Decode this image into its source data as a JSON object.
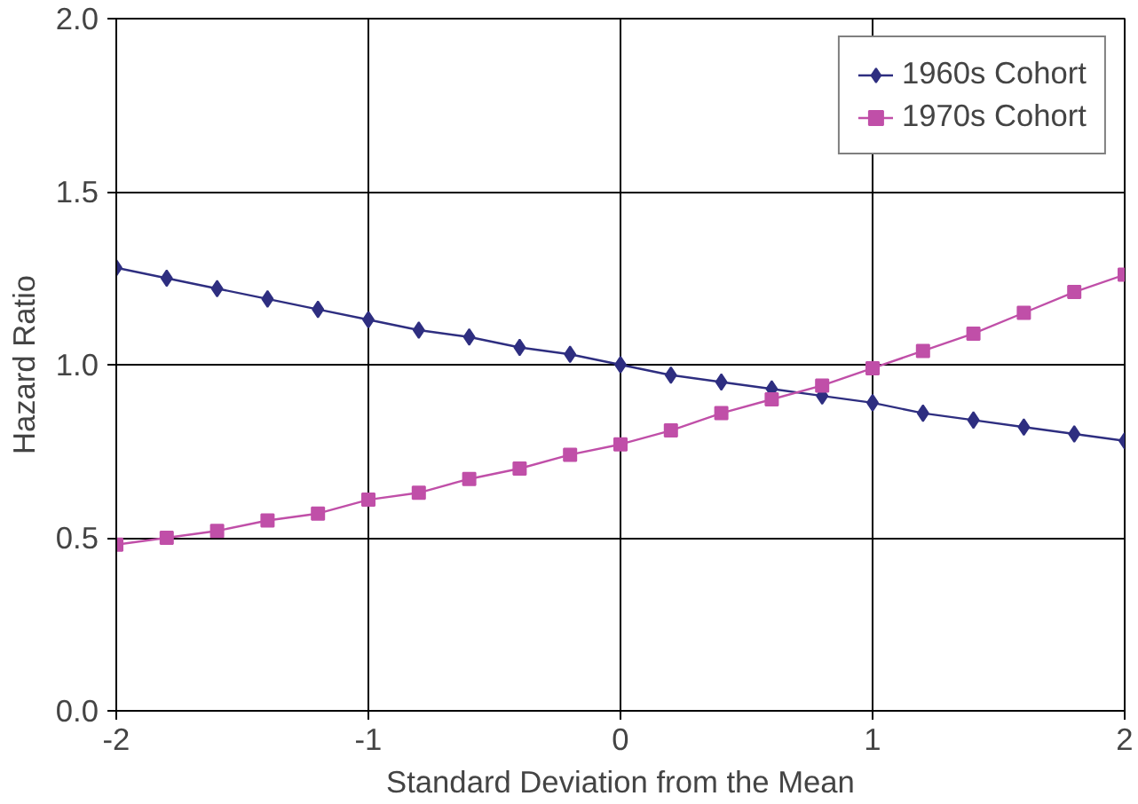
{
  "chart_data": {
    "type": "line",
    "xlabel": "Standard Deviation from the Mean",
    "ylabel": "Hazard Ratio",
    "x": [
      -2,
      -1.8,
      -1.6,
      -1.4,
      -1.2,
      -1,
      -0.8,
      -0.6,
      -0.4,
      -0.2,
      0,
      0.2,
      0.4,
      0.6,
      0.8,
      1,
      1.2,
      1.4,
      1.6,
      1.8,
      2
    ],
    "series": [
      {
        "name": "1960s Cohort",
        "color": "#2e2e80",
        "marker": "diamond",
        "values": [
          1.28,
          1.25,
          1.22,
          1.19,
          1.16,
          1.13,
          1.1,
          1.08,
          1.05,
          1.03,
          1.0,
          0.97,
          0.95,
          0.93,
          0.91,
          0.89,
          0.86,
          0.84,
          0.82,
          0.8,
          0.78
        ]
      },
      {
        "name": "1970s Cohort",
        "color": "#c04fa8",
        "marker": "square",
        "values": [
          0.48,
          0.5,
          0.52,
          0.55,
          0.57,
          0.61,
          0.63,
          0.67,
          0.7,
          0.74,
          0.77,
          0.81,
          0.86,
          0.9,
          0.94,
          0.99,
          1.04,
          1.09,
          1.15,
          1.21,
          1.26
        ]
      }
    ],
    "xlim": [
      -2,
      2
    ],
    "xticks": [
      -2,
      -1,
      0,
      1,
      2
    ],
    "ylim": [
      0,
      2
    ],
    "yticks": [
      {
        "value": 0,
        "label": "0.0"
      },
      {
        "value": 0.5,
        "label": "0.5"
      },
      {
        "value": 1,
        "label": "1.0"
      },
      {
        "value": 1.5,
        "label": "1.5"
      },
      {
        "value": 2,
        "label": "2.0"
      }
    ],
    "grid": true,
    "legend": "top right",
    "line_style": "solid"
  }
}
